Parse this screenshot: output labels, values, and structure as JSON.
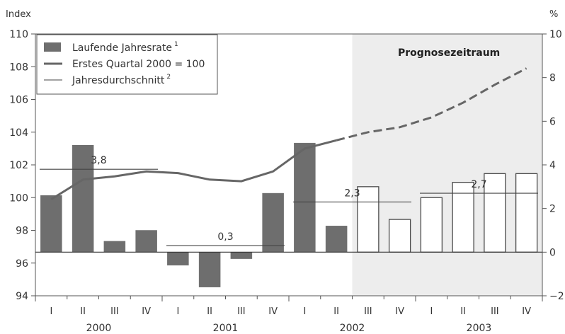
{
  "chart_data": {
    "type": "bar",
    "title": "",
    "left_axis": {
      "unit": "Index",
      "ylim": [
        94,
        110
      ],
      "ticks": [
        94,
        96,
        98,
        100,
        102,
        104,
        106,
        108,
        110
      ]
    },
    "right_axis": {
      "unit": "%",
      "ylim": [
        -2,
        10
      ],
      "ticks": [
        -2,
        0,
        2,
        4,
        6,
        8,
        10
      ]
    },
    "years": [
      "2000",
      "2001",
      "2002",
      "2003"
    ],
    "quarters": [
      "I",
      "II",
      "III",
      "IV",
      "I",
      "II",
      "III",
      "IV",
      "I",
      "II",
      "III",
      "IV",
      "I",
      "II",
      "III",
      "IV"
    ],
    "forecast_label": "Prognosezeitraum",
    "forecast_start_index": 10,
    "legend": {
      "bars": "Laufende Jahresrate",
      "bars_sup": "1",
      "line": "Erstes Quartal 2000 = 100",
      "avg": "Jahresdurchschnitt",
      "avg_sup": "2"
    },
    "bars_pct": [
      2.6,
      4.9,
      0.5,
      1.0,
      -0.6,
      -1.6,
      -0.3,
      2.7,
      5.0,
      1.2,
      3.0,
      1.5,
      2.5,
      3.2,
      3.6,
      3.6
    ],
    "index_line": [
      100,
      101.5,
      102.5,
      103.6,
      102.9,
      102.3,
      102.3,
      103.6,
      101.3,
      103.5,
      105.5,
      105.9,
      106.5,
      106.9,
      107.6,
      108.3
    ],
    "index_line_points": [
      [
        0.0,
        99.9
      ],
      [
        1.0,
        101.1
      ],
      [
        2.0,
        101.3
      ],
      [
        3.0,
        101.6
      ],
      [
        4.0,
        101.5
      ],
      [
        5.0,
        101.1
      ],
      [
        6.0,
        101.0
      ],
      [
        7.0,
        101.6
      ],
      [
        8.0,
        103.0
      ],
      [
        9.0,
        103.5
      ],
      [
        10.0,
        104.0
      ],
      [
        11.0,
        104.3
      ],
      [
        12.0,
        104.9
      ],
      [
        13.0,
        105.8
      ],
      [
        14.0,
        106.9
      ],
      [
        15.0,
        107.9
      ]
    ],
    "annual_averages": [
      {
        "year": "2000",
        "value": 3.8,
        "label": "3,8"
      },
      {
        "year": "2001",
        "value": 0.3,
        "label": "0,3"
      },
      {
        "year": "2002",
        "value": 2.3,
        "label": "2,3"
      },
      {
        "year": "2003",
        "value": 2.7,
        "label": "2,7"
      }
    ],
    "grid": false,
    "legend_position": "top-left"
  },
  "colors": {
    "bar_actual": "#6e6e6e",
    "bar_forecast_fill": "#ffffff",
    "bar_forecast_stroke": "#4a4a4a",
    "line": "#666666",
    "forecast_background": "#ededed",
    "axis": "#555555"
  }
}
